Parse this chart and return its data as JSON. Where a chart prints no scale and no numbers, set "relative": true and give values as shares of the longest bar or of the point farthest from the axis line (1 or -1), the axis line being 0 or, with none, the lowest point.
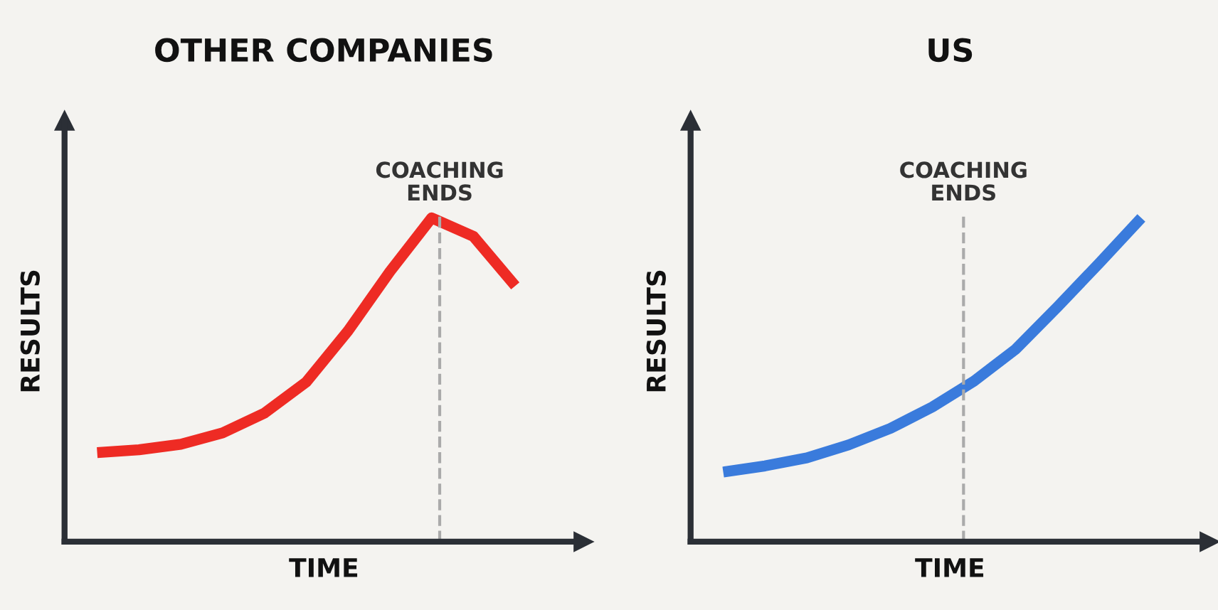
{
  "chart_data": [
    {
      "type": "line",
      "title": "OTHER COMPANIES",
      "xlabel": "TIME",
      "ylabel": "RESULTS",
      "relative": true,
      "grid": false,
      "legend": false,
      "marker": "none",
      "line_style": "solid",
      "categories": [
        null,
        null,
        null,
        null,
        null,
        null,
        null,
        null,
        null,
        null,
        null
      ],
      "series": [
        {
          "color": "#ee2b24",
          "values": [
            0.275,
            0.284,
            0.301,
            0.336,
            0.397,
            0.493,
            0.651,
            0.834,
            1.0,
            0.943,
            0.79
          ]
        }
      ],
      "annotations": [
        "COACHING\nENDS"
      ]
    },
    {
      "type": "line",
      "title": "US",
      "xlabel": "TIME",
      "ylabel": "RESULTS",
      "relative": true,
      "grid": false,
      "legend": false,
      "marker": "none",
      "line_style": "solid",
      "categories": [
        null,
        null,
        null,
        null,
        null,
        null,
        null,
        null,
        null,
        null,
        null
      ],
      "series": [
        {
          "color": "#3a7bdc",
          "values": [
            0.215,
            0.234,
            0.259,
            0.299,
            0.35,
            0.416,
            0.496,
            0.595,
            0.726,
            0.861,
            1.0
          ]
        }
      ],
      "annotations": [
        "COACHING\nENDS"
      ]
    }
  ]
}
